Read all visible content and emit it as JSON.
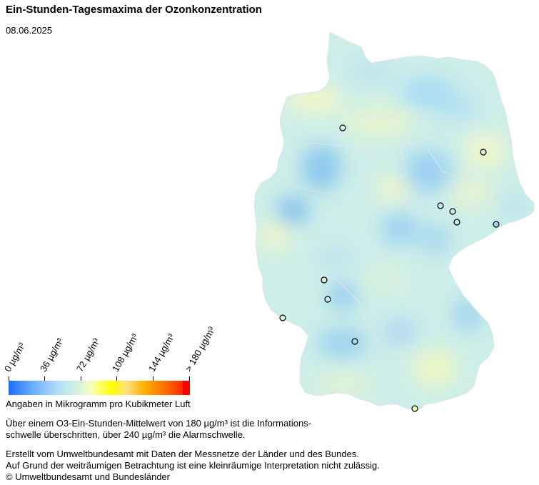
{
  "title": "Ein-Stunden-Tagesmaxima der Ozonkonzentration",
  "date": "08.06.2025",
  "legend": {
    "ticks": [
      "0  µg/m³",
      "36  µg/m³",
      "72  µg/m³",
      "108  µg/m³",
      "144  µg/m³",
      "> 180  µg/m³"
    ],
    "unit_text": "Angaben in Mikrogramm pro Kubikmeter Luft"
  },
  "notes": {
    "threshold_line1": "Über einem O3-Ein-Stunden-Mittelwert von 180 µg/m³ ist die Informations-",
    "threshold_line2": "schwelle überschritten, über 240 µg/m³ die Alarmschwelle.",
    "credit_line1": "Erstellt vom Umweltbundesamt mit Daten der Messnetze der Länder und des Bundes.",
    "credit_line2": "Auf Grund der weiträumigen Betrachtung ist eine kleinräumige Interpretation nicht zulässig.",
    "credit_line3": "© Umweltbundesamt und Bundesländer"
  },
  "colors": {
    "map_base": "#cdeee8",
    "low_blue": "#9fd4f2",
    "mid_yellow": "#f2f7c4"
  }
}
